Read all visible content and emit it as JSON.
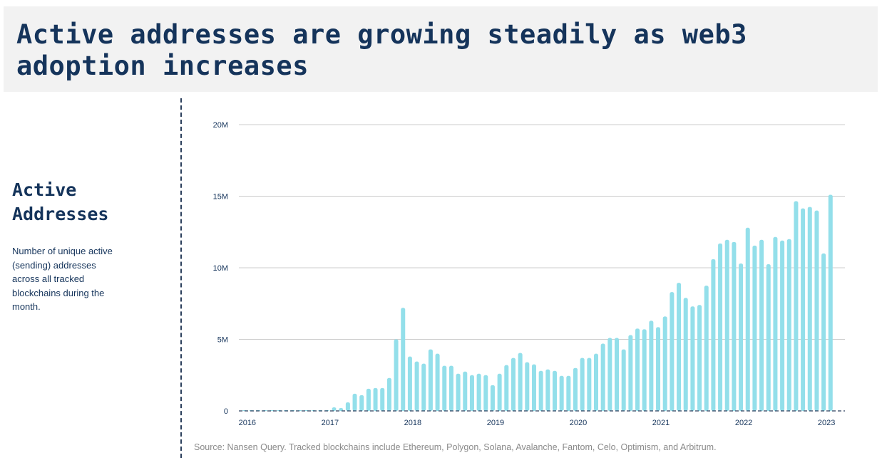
{
  "header": {
    "title": "Active addresses are growing steadily as web3 adoption increases"
  },
  "sidebar": {
    "title": "Active Addresses",
    "description": "Number of unique active (sending) addresses across all tracked blockchains during the month."
  },
  "source": "Source: Nansen Query. Tracked blockchains include Ethereum, Polygon, Solana, Avalanche, Fantom, Celo, Optimism, and Arbitrum.",
  "colors": {
    "bar": "#93dfea",
    "title": "#15345b",
    "grid": "#cccccc",
    "baseline": "#2b3f5c"
  },
  "chart_data": {
    "type": "bar",
    "title": "Active Addresses",
    "xlabel": "",
    "ylabel": "",
    "ylim": [
      0,
      20000000
    ],
    "y_ticks": [
      0,
      5000000,
      10000000,
      15000000,
      20000000
    ],
    "y_tick_labels": [
      "0",
      "5M",
      "10M",
      "15M",
      "20M"
    ],
    "x_tick_labels": [
      "2016",
      "2017",
      "2018",
      "2019",
      "2020",
      "2021",
      "2022",
      "2023"
    ],
    "grid": true,
    "legend": "none",
    "start_month": "2016-01",
    "units": "millions",
    "values": [
      0.01,
      0.01,
      0.01,
      0.01,
      0.02,
      0.02,
      0.03,
      0.03,
      0.03,
      0.03,
      0.03,
      0.03,
      0.05,
      0.25,
      0.2,
      0.6,
      1.2,
      1.1,
      1.55,
      1.6,
      1.6,
      2.3,
      5.0,
      7.2,
      3.8,
      3.45,
      3.3,
      4.3,
      4.0,
      3.15,
      3.15,
      2.6,
      2.75,
      2.5,
      2.6,
      2.5,
      1.8,
      2.6,
      3.2,
      3.7,
      4.05,
      3.4,
      3.25,
      2.8,
      2.9,
      2.8,
      2.45,
      2.45,
      3.0,
      3.7,
      3.7,
      4.0,
      4.7,
      5.1,
      5.1,
      4.3,
      5.3,
      5.75,
      5.7,
      6.3,
      5.85,
      6.6,
      8.3,
      8.95,
      7.9,
      7.3,
      7.4,
      8.75,
      10.6,
      11.7,
      11.95,
      11.8,
      10.3,
      12.8,
      11.55,
      11.95,
      10.25,
      12.15,
      11.9,
      12.0,
      14.65,
      14.15,
      14.25,
      14.0,
      11.0,
      15.1
    ]
  }
}
